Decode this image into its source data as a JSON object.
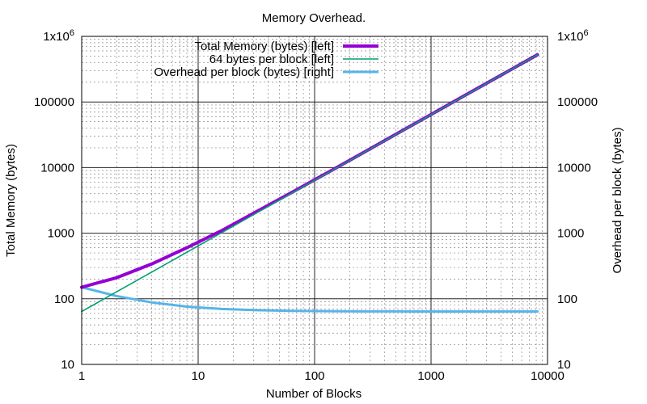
{
  "chart_data": {
    "type": "line",
    "title": "Memory Overhead.",
    "xlabel": "Number of Blocks",
    "ylabel_left": "Total Memory (bytes)",
    "ylabel_right": "Overhead per block (bytes)",
    "xscale": "log",
    "yscale": "log",
    "xlim": [
      1,
      10000
    ],
    "ylim_left": [
      10,
      1000000
    ],
    "ylim_right": [
      10,
      1000000
    ],
    "grid": true,
    "legend_position": "top-left",
    "x_tick_labels": [
      "1",
      "10",
      "100",
      "1000",
      "10000"
    ],
    "x_tick_values": [
      1,
      10,
      100,
      1000,
      10000
    ],
    "y_tick_values": [
      10,
      100,
      1000,
      10000,
      100000,
      1000000
    ],
    "y_tick_labels_left": [
      "10",
      "100",
      "1000",
      "10000",
      "100000",
      "1x10"
    ],
    "y_tick_labels_right": [
      "10",
      "100",
      "1000",
      "10000",
      "100000",
      "1x10"
    ],
    "y_top_exponent": "6",
    "series": [
      {
        "name": "Total Memory (bytes) [left]",
        "axis": "left",
        "color": "#9400d3",
        "x": [
          1,
          2,
          4,
          8,
          16,
          32,
          64,
          128,
          256,
          512,
          1024,
          2048,
          4096,
          8192
        ],
        "y": [
          150,
          210,
          340,
          600,
          1100,
          2150,
          4200,
          8300,
          16500,
          33000,
          66000,
          132000,
          263000,
          525000
        ]
      },
      {
        "name": "64 bytes per block [left]",
        "axis": "left",
        "color": "#009e73",
        "x": [
          1,
          2,
          4,
          8,
          16,
          32,
          64,
          128,
          256,
          512,
          1024,
          2048,
          4096,
          8192
        ],
        "y": [
          64,
          128,
          256,
          512,
          1024,
          2048,
          4096,
          8192,
          16384,
          32768,
          65536,
          131072,
          262144,
          524288
        ]
      },
      {
        "name": "Overhead per block (bytes) [right]",
        "axis": "right",
        "color": "#56b4e9",
        "x": [
          1,
          2,
          4,
          8,
          16,
          32,
          64,
          128,
          256,
          512,
          1024,
          2048,
          4096,
          8192
        ],
        "y": [
          150,
          110,
          88,
          76,
          70,
          67,
          65.5,
          64.8,
          64.4,
          64.2,
          64.1,
          64.05,
          64.02,
          64.01
        ]
      }
    ]
  }
}
